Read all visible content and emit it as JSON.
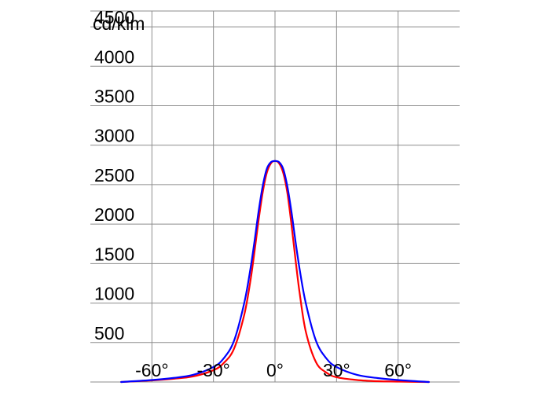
{
  "chart_data": {
    "type": "line",
    "title": "",
    "unit_label": "cd/klm",
    "xlabel": "",
    "ylabel": "",
    "xlim": [
      -90,
      90
    ],
    "ylim": [
      0,
      4700
    ],
    "x_ticks": [
      {
        "value": -60,
        "label": "-60°"
      },
      {
        "value": -30,
        "label": "-30°"
      },
      {
        "value": 0,
        "label": "0°"
      },
      {
        "value": 30,
        "label": "30°"
      },
      {
        "value": 60,
        "label": "60°"
      }
    ],
    "y_ticks": [
      {
        "value": 500,
        "label": "500"
      },
      {
        "value": 1000,
        "label": "1000"
      },
      {
        "value": 1500,
        "label": "1500"
      },
      {
        "value": 2000,
        "label": "2000"
      },
      {
        "value": 2500,
        "label": "2500"
      },
      {
        "value": 3000,
        "label": "3000"
      },
      {
        "value": 3500,
        "label": "3500"
      },
      {
        "value": 4000,
        "label": "4000"
      },
      {
        "value": 4500,
        "label": "4500"
      }
    ],
    "grid": true,
    "legend": "none",
    "series": [
      {
        "color": "#ff0000",
        "x": [
          -75,
          -60,
          -50,
          -40,
          -30,
          -25,
          -20,
          -15,
          -12,
          -10,
          -8,
          -6,
          -4,
          -2,
          0,
          2,
          4,
          6,
          8,
          10,
          12,
          15,
          20,
          25,
          30,
          40,
          50,
          60,
          75
        ],
        "y": [
          0,
          20,
          40,
          70,
          150,
          240,
          420,
          850,
          1280,
          1650,
          2050,
          2400,
          2650,
          2770,
          2800,
          2770,
          2650,
          2400,
          2000,
          1550,
          1130,
          640,
          250,
          120,
          60,
          25,
          10,
          5,
          0
        ]
      },
      {
        "color": "#0000ff",
        "x": [
          -75,
          -60,
          -50,
          -40,
          -30,
          -25,
          -20,
          -15,
          -12,
          -10,
          -8,
          -6,
          -4,
          -2,
          0,
          2,
          4,
          6,
          8,
          10,
          12,
          15,
          20,
          25,
          30,
          40,
          50,
          60,
          75
        ],
        "y": [
          0,
          25,
          50,
          90,
          190,
          300,
          520,
          1000,
          1430,
          1780,
          2160,
          2480,
          2700,
          2785,
          2800,
          2785,
          2700,
          2480,
          2160,
          1780,
          1430,
          1000,
          520,
          300,
          190,
          90,
          50,
          25,
          0
        ]
      }
    ]
  }
}
